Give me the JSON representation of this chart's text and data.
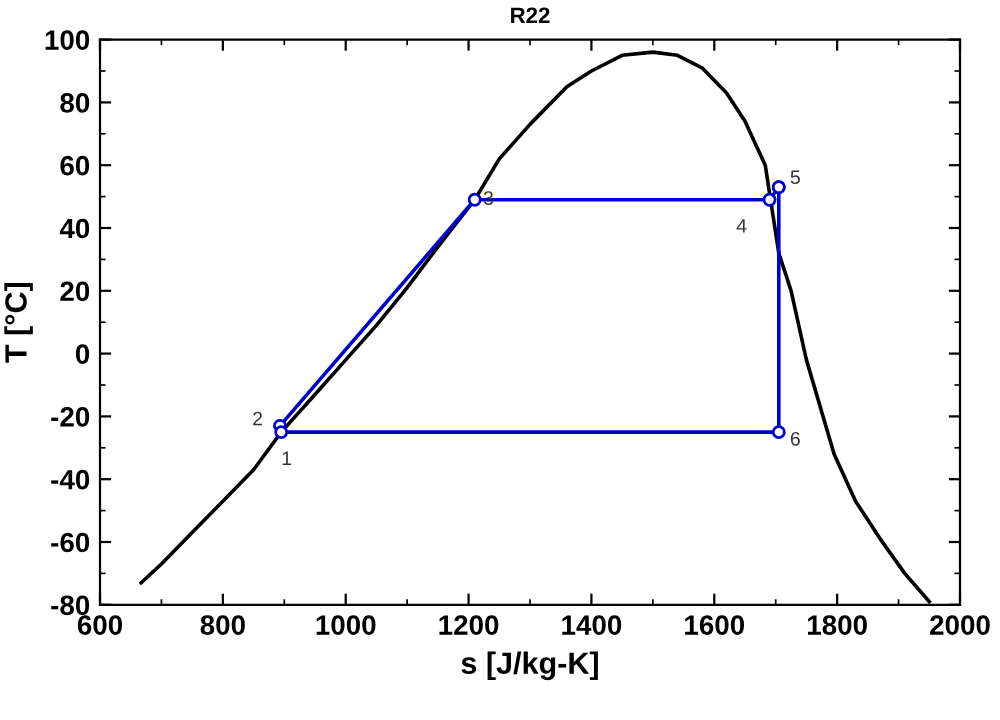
{
  "chart_data": {
    "type": "line",
    "title": "R22",
    "xlabel": "s [J/kg-K]",
    "ylabel": "T [°C]",
    "xlim": [
      600,
      2000
    ],
    "xticks": [
      600,
      800,
      1000,
      1200,
      1400,
      1600,
      1800,
      2000
    ],
    "ylim": [
      -80,
      100
    ],
    "yticks": [
      -80,
      -60,
      -40,
      -20,
      0,
      20,
      40,
      60,
      80,
      100
    ],
    "grid": false,
    "legend": false,
    "series": [
      {
        "color": "#000000",
        "marker": "none",
        "x": [
          667,
          700,
          750,
          800,
          850,
          895,
          950,
          1000,
          1050,
          1100,
          1150,
          1210,
          1250,
          1300,
          1360,
          1400,
          1450,
          1500,
          1540,
          1580,
          1620,
          1650,
          1683,
          1705,
          1725,
          1750,
          1795,
          1830,
          1870,
          1910,
          1950
        ],
        "values": [
          -73,
          -67,
          -57,
          -47,
          -37,
          -25,
          -13,
          -2,
          9,
          21,
          34,
          49,
          62,
          73,
          85,
          90,
          95,
          96,
          95,
          91,
          83,
          74,
          60,
          32,
          20,
          -2,
          -32,
          -47,
          -59,
          -70,
          -79
        ]
      },
      {
        "color": "#0000cc",
        "marker": "circle",
        "x": [
          893,
          1210,
          1690,
          1705
        ],
        "values": [
          -23,
          49,
          49,
          53
        ]
      },
      {
        "color": "#0000cc",
        "marker": "circle",
        "x": [
          895,
          1705,
          1705
        ],
        "values": [
          -25,
          -25,
          53
        ]
      }
    ],
    "annotations": [
      {
        "text": "1",
        "x": 895,
        "y": -25
      },
      {
        "text": "2",
        "x": 893,
        "y": -23
      },
      {
        "text": "3",
        "x": 1210,
        "y": 49
      },
      {
        "text": "4",
        "x": 1690,
        "y": 49
      },
      {
        "text": "5",
        "x": 1705,
        "y": 53
      },
      {
        "text": "6",
        "x": 1705,
        "y": -25
      }
    ]
  }
}
